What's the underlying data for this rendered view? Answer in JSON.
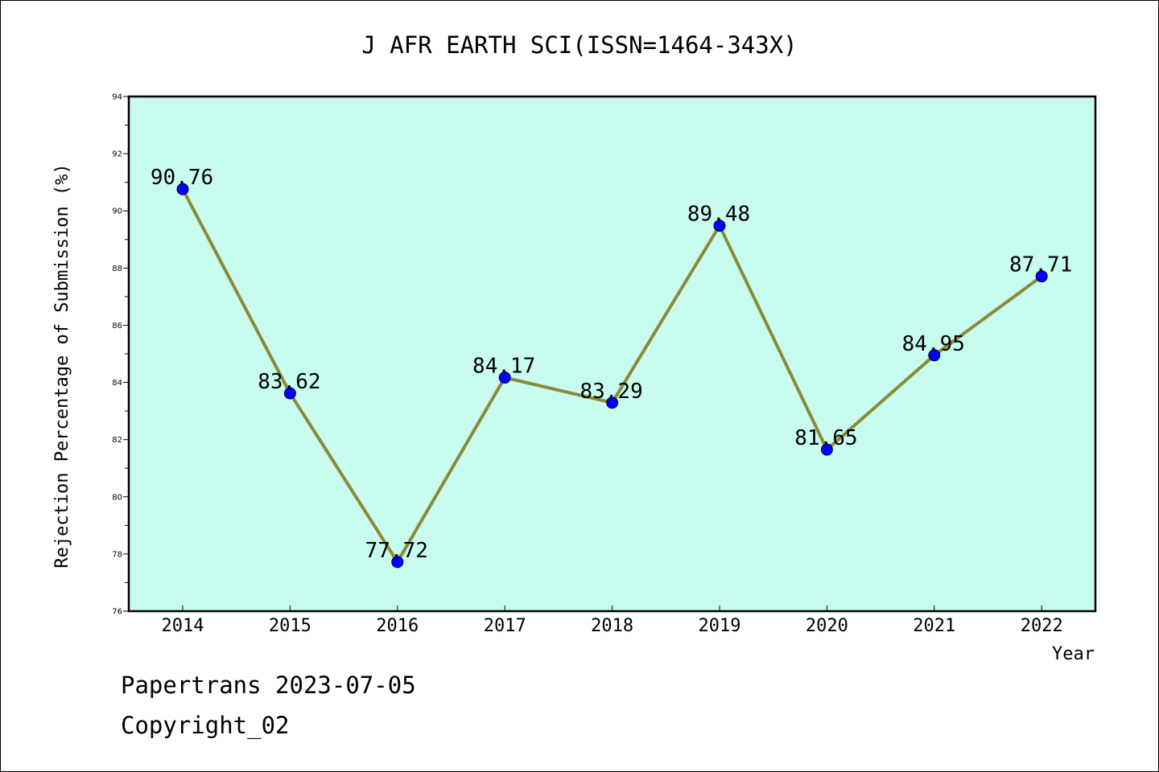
{
  "chart_data": {
    "type": "line",
    "title": "J AFR EARTH SCI(ISSN=1464-343X)",
    "xlabel": "Year",
    "ylabel": "Rejection Percentage of Submission (%)",
    "categories": [
      "2014",
      "2015",
      "2016",
      "2017",
      "2018",
      "2019",
      "2020",
      "2021",
      "2022"
    ],
    "values": [
      90.76,
      83.62,
      77.72,
      84.17,
      83.29,
      89.48,
      81.65,
      84.95,
      87.71
    ],
    "data_labels": [
      "90.76",
      "83.62",
      "77.72",
      "84.17",
      "83.29",
      "89.48",
      "81.65",
      "84.95",
      "87.71"
    ],
    "ylim": [
      76,
      94
    ],
    "yticks": [
      "76",
      "78",
      "80",
      "82",
      "84",
      "86",
      "88",
      "90",
      "92",
      "94"
    ],
    "grid": false,
    "colors": {
      "plot_background": "#c8fcee",
      "line": "#8b8a3a",
      "marker": "#0000ff"
    }
  },
  "footer": {
    "line1": "Papertrans 2023-07-05",
    "line2": "Copyright_02"
  }
}
